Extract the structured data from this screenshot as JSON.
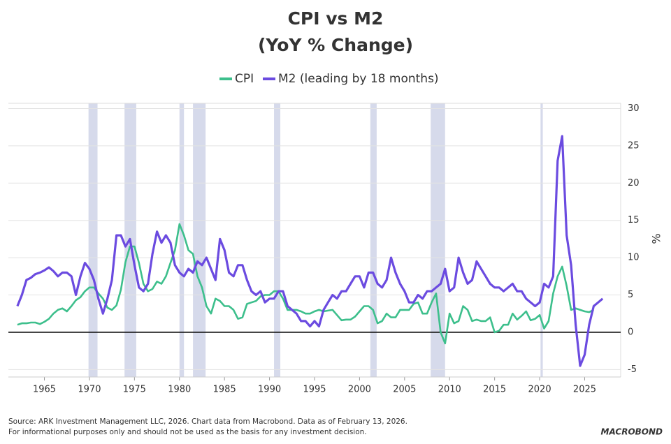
{
  "chart_data": {
    "type": "line",
    "title": "CPI vs M2",
    "subtitle": "(YoY % Change)",
    "y_label": "%",
    "source": "Source: ARK Investment Management LLC, 2026. Chart data from Macrobond. Data as of February 13, 2026.",
    "disclaimer": "For informational purposes only and should not be used as the basis for any investment decision.",
    "logo": "MACROBOND",
    "x": [
      1962,
      1962.5,
      1963,
      1963.5,
      1964,
      1964.5,
      1965,
      1965.5,
      1966,
      1966.5,
      1967,
      1967.5,
      1968,
      1968.5,
      1969,
      1969.5,
      1970,
      1970.5,
      1971,
      1971.5,
      1972,
      1972.5,
      1973,
      1973.5,
      1974,
      1974.5,
      1975,
      1975.5,
      1976,
      1976.5,
      1977,
      1977.5,
      1978,
      1978.5,
      1979,
      1979.5,
      1980,
      1980.5,
      1981,
      1981.5,
      1982,
      1982.5,
      1983,
      1983.5,
      1984,
      1984.5,
      1985,
      1985.5,
      1986,
      1986.5,
      1987,
      1987.5,
      1988,
      1988.5,
      1989,
      1989.5,
      1990,
      1990.5,
      1991,
      1991.5,
      1992,
      1992.5,
      1993,
      1993.5,
      1994,
      1994.5,
      1995,
      1995.5,
      1996,
      1996.5,
      1997,
      1997.5,
      1998,
      1998.5,
      1999,
      1999.5,
      2000,
      2000.5,
      2001,
      2001.5,
      2002,
      2002.5,
      2003,
      2003.5,
      2004,
      2004.5,
      2005,
      2005.5,
      2006,
      2006.5,
      2007,
      2007.5,
      2008,
      2008.5,
      2009,
      2009.5,
      2010,
      2010.5,
      2011,
      2011.5,
      2012,
      2012.5,
      2013,
      2013.5,
      2014,
      2014.5,
      2015,
      2015.5,
      2016,
      2016.5,
      2017,
      2017.5,
      2018,
      2018.5,
      2019,
      2019.5,
      2020,
      2020.5,
      2021,
      2021.5,
      2022,
      2022.5,
      2023,
      2023.5,
      2024,
      2024.5,
      2025,
      2025.5,
      2026,
      2026.5,
      2027
    ],
    "series": [
      {
        "name": "CPI",
        "color": "#3dbf8c",
        "values": [
          1.0,
          1.2,
          1.2,
          1.3,
          1.3,
          1.1,
          1.4,
          1.8,
          2.5,
          3.0,
          3.2,
          2.8,
          3.5,
          4.3,
          4.7,
          5.5,
          6.0,
          6.0,
          5.2,
          4.5,
          3.3,
          3.0,
          3.6,
          5.7,
          9.4,
          11.5,
          11.5,
          9.3,
          6.5,
          5.5,
          5.8,
          6.8,
          6.5,
          7.5,
          9.3,
          11.0,
          14.5,
          13.0,
          11.0,
          10.5,
          7.5,
          6.0,
          3.5,
          2.5,
          4.5,
          4.2,
          3.5,
          3.5,
          3.0,
          1.8,
          2.0,
          3.8,
          4.0,
          4.2,
          4.8,
          5.0,
          5.0,
          5.5,
          5.5,
          4.5,
          3.0,
          3.0,
          3.0,
          2.8,
          2.5,
          2.5,
          2.8,
          3.0,
          2.8,
          2.9,
          3.0,
          2.3,
          1.6,
          1.7,
          1.7,
          2.1,
          2.8,
          3.5,
          3.5,
          3.0,
          1.2,
          1.5,
          2.5,
          2.0,
          2.0,
          3.0,
          3.0,
          3.0,
          3.8,
          4.0,
          2.5,
          2.5,
          4.0,
          5.2,
          0.0,
          -1.5,
          2.5,
          1.2,
          1.5,
          3.5,
          3.0,
          1.5,
          1.7,
          1.5,
          1.5,
          2.0,
          0.0,
          0.2,
          1.0,
          1.0,
          2.5,
          1.7,
          2.2,
          2.8,
          1.6,
          1.8,
          2.3,
          0.5,
          1.5,
          5.2,
          7.5,
          8.8,
          6.2,
          3.0,
          3.2,
          3.0,
          2.8,
          2.7,
          3.0,
          null,
          null
        ]
      },
      {
        "name": "M2 (leading by 18 months)",
        "color": "#6b4be0",
        "values": [
          3.5,
          5.0,
          7.0,
          7.3,
          7.8,
          8.0,
          8.3,
          8.7,
          8.2,
          7.5,
          8.0,
          8.0,
          7.5,
          5.0,
          7.5,
          9.3,
          8.5,
          7.0,
          4.5,
          2.5,
          4.5,
          7.0,
          13.0,
          13.0,
          11.5,
          12.5,
          9.0,
          6.0,
          5.5,
          6.5,
          10.5,
          13.5,
          12.0,
          13.0,
          12.0,
          9.0,
          8.0,
          7.5,
          8.5,
          8.0,
          9.5,
          9.0,
          10.0,
          8.5,
          7.0,
          12.5,
          11.0,
          8.0,
          7.5,
          9.0,
          9.0,
          7.0,
          5.5,
          5.0,
          5.5,
          4.0,
          4.5,
          4.5,
          5.5,
          5.5,
          3.5,
          3.0,
          2.5,
          1.5,
          1.5,
          0.8,
          1.5,
          0.8,
          3.0,
          4.0,
          5.0,
          4.5,
          5.5,
          5.5,
          6.5,
          7.5,
          7.5,
          6.0,
          8.0,
          8.0,
          6.5,
          6.0,
          7.0,
          10.0,
          8.0,
          6.5,
          5.5,
          4.0,
          4.0,
          5.0,
          4.5,
          5.5,
          5.5,
          6.0,
          6.5,
          8.5,
          5.5,
          6.0,
          10.0,
          8.0,
          6.5,
          7.0,
          9.5,
          8.5,
          7.5,
          6.5,
          6.0,
          6.0,
          5.5,
          6.0,
          6.5,
          5.5,
          5.5,
          4.5,
          4.0,
          3.5,
          4.0,
          6.5,
          6.0,
          7.5,
          23.0,
          26.3,
          13.0,
          9.0,
          1.0,
          -4.5,
          -3.0,
          1.0,
          3.5,
          4.0,
          4.5
        ]
      }
    ],
    "shaded_ranges": [
      [
        1969.9,
        1970.9
      ],
      [
        1973.9,
        1975.2
      ],
      [
        1980.0,
        1980.5
      ],
      [
        1981.5,
        1982.9
      ],
      [
        1990.5,
        1991.2
      ],
      [
        2001.2,
        2001.9
      ],
      [
        2007.9,
        2009.5
      ],
      [
        2020.1,
        2020.35
      ]
    ],
    "shade_color": "#d6daeb",
    "hline": 0,
    "xlim": [
      1961,
      2029
    ],
    "ylim": [
      -6,
      30.7
    ],
    "xticks": [
      1965,
      1970,
      1975,
      1980,
      1985,
      1990,
      1995,
      2000,
      2005,
      2010,
      2015,
      2020,
      2025
    ],
    "yticks": [
      -5,
      0,
      5,
      10,
      15,
      20,
      25,
      30
    ],
    "grid": true
  }
}
